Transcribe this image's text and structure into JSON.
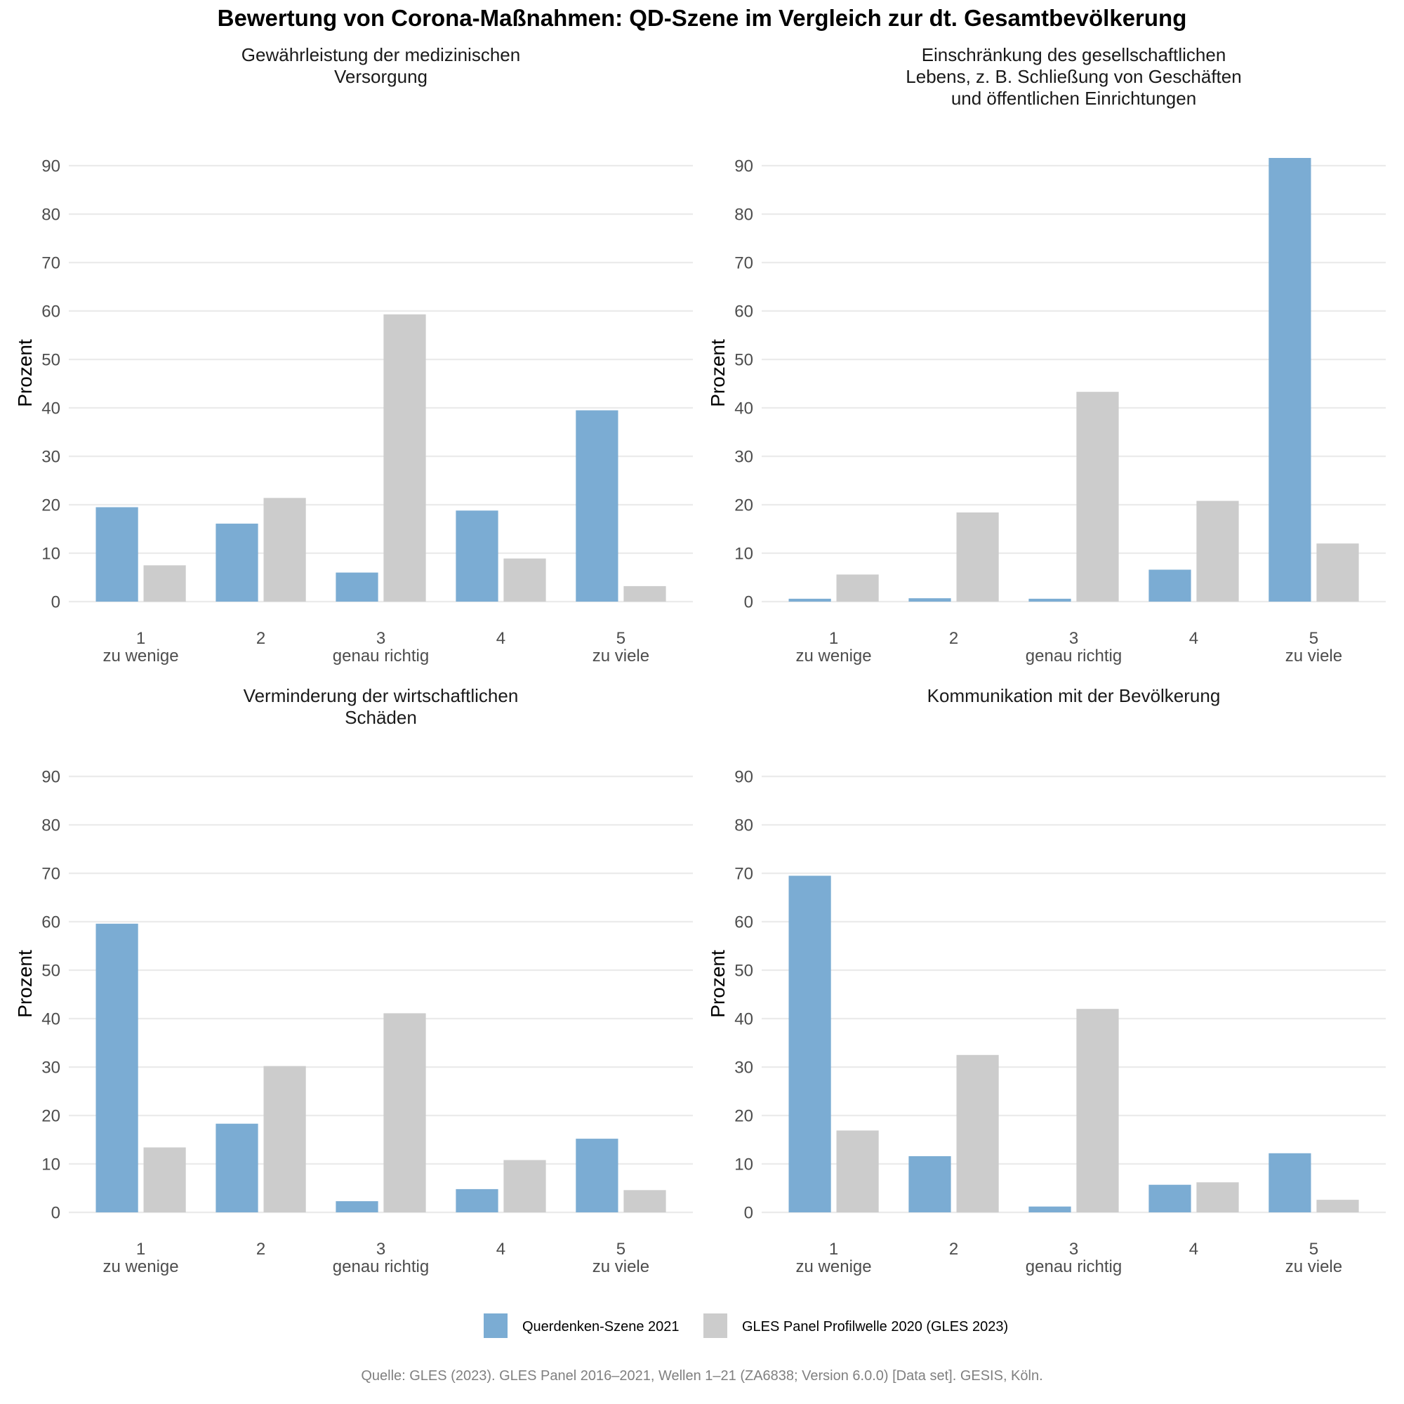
{
  "chart_data": {
    "type": "bar",
    "title": "Bewertung von Corona-Maßnahmen: QD-Szene im Vergleich zur dt. Gesamtbevölkerung",
    "caption": "Quelle: GLES (2023). GLES Panel 2016–2021, Wellen 1–21 (ZA6838; Version 6.0.0) [Data set]. GESIS, Köln.",
    "legend": {
      "position": "bottom",
      "entries": [
        {
          "name": "Querdenken-Szene 2021",
          "color": "#7bacd3"
        },
        {
          "name": "GLES Panel Profilwelle 2020 (GLES 2023)",
          "color": "#cccccc"
        }
      ]
    },
    "categories": [
      {
        "value": "1",
        "label": "zu wenige"
      },
      {
        "value": "2",
        "label": ""
      },
      {
        "value": "3",
        "label": "genau richtig"
      },
      {
        "value": "4",
        "label": ""
      },
      {
        "value": "5",
        "label": "zu viele"
      }
    ],
    "ylabel": "Prozent",
    "xlabel": "",
    "ylim": [
      0,
      90
    ],
    "yticks": [
      0,
      10,
      20,
      30,
      40,
      50,
      60,
      70,
      80,
      90
    ],
    "grid": true,
    "panels": [
      {
        "title_lines": [
          "Gewährleistung der medizinischen",
          "Versorgung"
        ],
        "series": [
          {
            "name": "Querdenken-Szene 2021",
            "values": [
              19.5,
              16.1,
              6.0,
              18.8,
              39.5
            ]
          },
          {
            "name": "GLES Panel Profilwelle 2020 (GLES 2023)",
            "values": [
              7.5,
              21.4,
              59.3,
              8.9,
              3.2
            ]
          }
        ]
      },
      {
        "title_lines": [
          "Einschränkung des gesellschaftlichen",
          "Lebens, z. B. Schließung von Geschäften",
          "und öffentlichen Einrichtungen"
        ],
        "series": [
          {
            "name": "Querdenken-Szene 2021",
            "values": [
              0.6,
              0.7,
              0.6,
              6.6,
              91.6
            ]
          },
          {
            "name": "GLES Panel Profilwelle 2020 (GLES 2023)",
            "values": [
              5.6,
              18.4,
              43.3,
              20.8,
              12.0
            ]
          }
        ]
      },
      {
        "title_lines": [
          "Verminderung der wirtschaftlichen",
          "Schäden"
        ],
        "series": [
          {
            "name": "Querdenken-Szene 2021",
            "values": [
              59.6,
              18.3,
              2.3,
              4.8,
              15.2
            ]
          },
          {
            "name": "GLES Panel Profilwelle 2020 (GLES 2023)",
            "values": [
              13.4,
              30.2,
              41.1,
              10.8,
              4.6
            ]
          }
        ]
      },
      {
        "title_lines": [
          "Kommunikation mit der Bevölkerung"
        ],
        "series": [
          {
            "name": "Querdenken-Szene 2021",
            "values": [
              69.5,
              11.6,
              1.2,
              5.7,
              12.2
            ]
          },
          {
            "name": "GLES Panel Profilwelle 2020 (GLES 2023)",
            "values": [
              16.9,
              32.5,
              42.0,
              6.2,
              2.6
            ]
          }
        ]
      }
    ]
  }
}
